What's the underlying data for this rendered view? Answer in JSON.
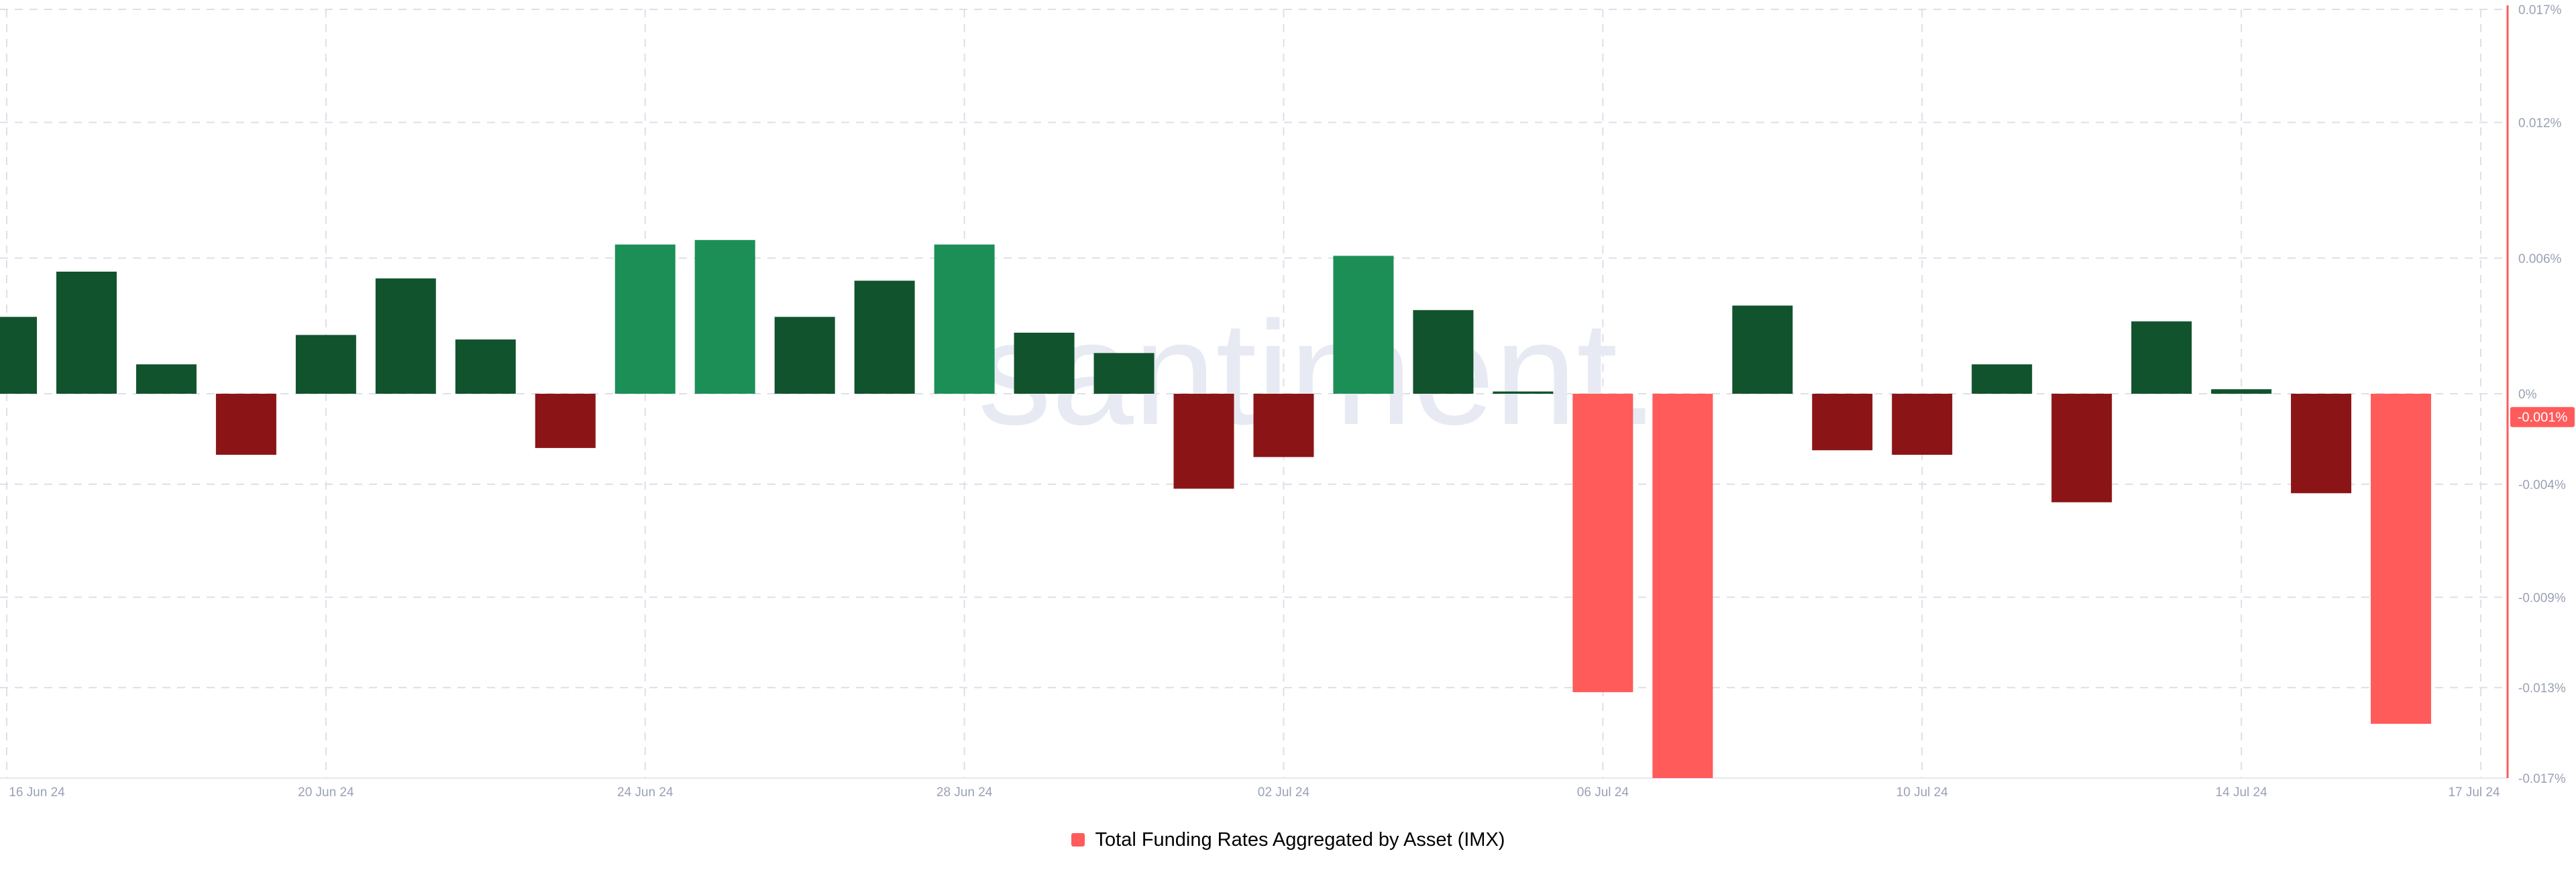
{
  "watermark": "santiment.",
  "colors": {
    "positive_dark": "#11532c",
    "positive_light": "#1c8f57",
    "negative_dark": "#8b1516",
    "negative_light": "#ff5b5b",
    "grid": "#dde0ea",
    "axis_text": "#9aa1b5",
    "right_axis_line": "#ff5b5b",
    "current_value_badge": "#ff5b5b",
    "watermark": "#e7eaf3"
  },
  "legend": {
    "label": "Total Funding Rates Aggregated by Asset (IMX)",
    "color": "#ff5b5b"
  },
  "current_value_label": "-0.001%",
  "chart_data": {
    "type": "bar",
    "title": "",
    "xlabel": "",
    "ylabel": "",
    "ylim": [
      -0.017,
      0.017
    ],
    "y_unit": "%",
    "y_ticks": [
      {
        "value": 0.017,
        "label": "0.017%"
      },
      {
        "value": 0.012,
        "label": "0.012%"
      },
      {
        "value": 0.006,
        "label": "0.006%"
      },
      {
        "value": 0,
        "label": "0%"
      },
      {
        "value": -0.004,
        "label": "-0.004%"
      },
      {
        "value": -0.009,
        "label": "-0.009%"
      },
      {
        "value": -0.013,
        "label": "-0.013%"
      },
      {
        "value": -0.017,
        "label": "-0.017%"
      }
    ],
    "x_ticks": [
      "16 Jun 24",
      "20 Jun 24",
      "24 Jun 24",
      "28 Jun 24",
      "02 Jul 24",
      "06 Jul 24",
      "10 Jul 24",
      "14 Jul 24",
      "17 Jul 24"
    ],
    "x_tick_dates": [
      "2024-06-16",
      "2024-06-20",
      "2024-06-24",
      "2024-06-28",
      "2024-07-02",
      "2024-07-06",
      "2024-07-10",
      "2024-07-14",
      "2024-07-17"
    ],
    "x_range": [
      "2024-06-16",
      "2024-07-17"
    ],
    "grid": true,
    "legend_position": "bottom",
    "series": [
      {
        "name": "Total Funding Rates Aggregated by Asset (IMX)",
        "points": [
          {
            "date": "2024-06-16",
            "value": 0.0034
          },
          {
            "date": "2024-06-17",
            "value": 0.0054
          },
          {
            "date": "2024-06-18",
            "value": 0.0013
          },
          {
            "date": "2024-06-19",
            "value": -0.0027
          },
          {
            "date": "2024-06-20",
            "value": 0.0026
          },
          {
            "date": "2024-06-21",
            "value": 0.0051
          },
          {
            "date": "2024-06-22",
            "value": 0.0024
          },
          {
            "date": "2024-06-23",
            "value": -0.0024
          },
          {
            "date": "2024-06-24",
            "value": 0.0066
          },
          {
            "date": "2024-06-25",
            "value": 0.0068
          },
          {
            "date": "2024-06-26",
            "value": 0.0034
          },
          {
            "date": "2024-06-27",
            "value": 0.005
          },
          {
            "date": "2024-06-28",
            "value": 0.0066
          },
          {
            "date": "2024-06-29",
            "value": 0.0027
          },
          {
            "date": "2024-06-30",
            "value": 0.0018
          },
          {
            "date": "2024-07-01",
            "value": -0.0042
          },
          {
            "date": "2024-07-02",
            "value": -0.0028
          },
          {
            "date": "2024-07-03",
            "value": 0.0061
          },
          {
            "date": "2024-07-04",
            "value": 0.0037
          },
          {
            "date": "2024-07-05",
            "value": 0.0001
          },
          {
            "date": "2024-07-06",
            "value": -0.0132
          },
          {
            "date": "2024-07-07",
            "value": -0.017
          },
          {
            "date": "2024-07-08",
            "value": 0.0039
          },
          {
            "date": "2024-07-09",
            "value": -0.0025
          },
          {
            "date": "2024-07-10",
            "value": -0.0027
          },
          {
            "date": "2024-07-11",
            "value": 0.0013
          },
          {
            "date": "2024-07-12",
            "value": -0.0048
          },
          {
            "date": "2024-07-13",
            "value": 0.0032
          },
          {
            "date": "2024-07-14",
            "value": 0.0002
          },
          {
            "date": "2024-07-15",
            "value": -0.0044
          },
          {
            "date": "2024-07-16",
            "value": -0.0146
          }
        ]
      }
    ]
  }
}
